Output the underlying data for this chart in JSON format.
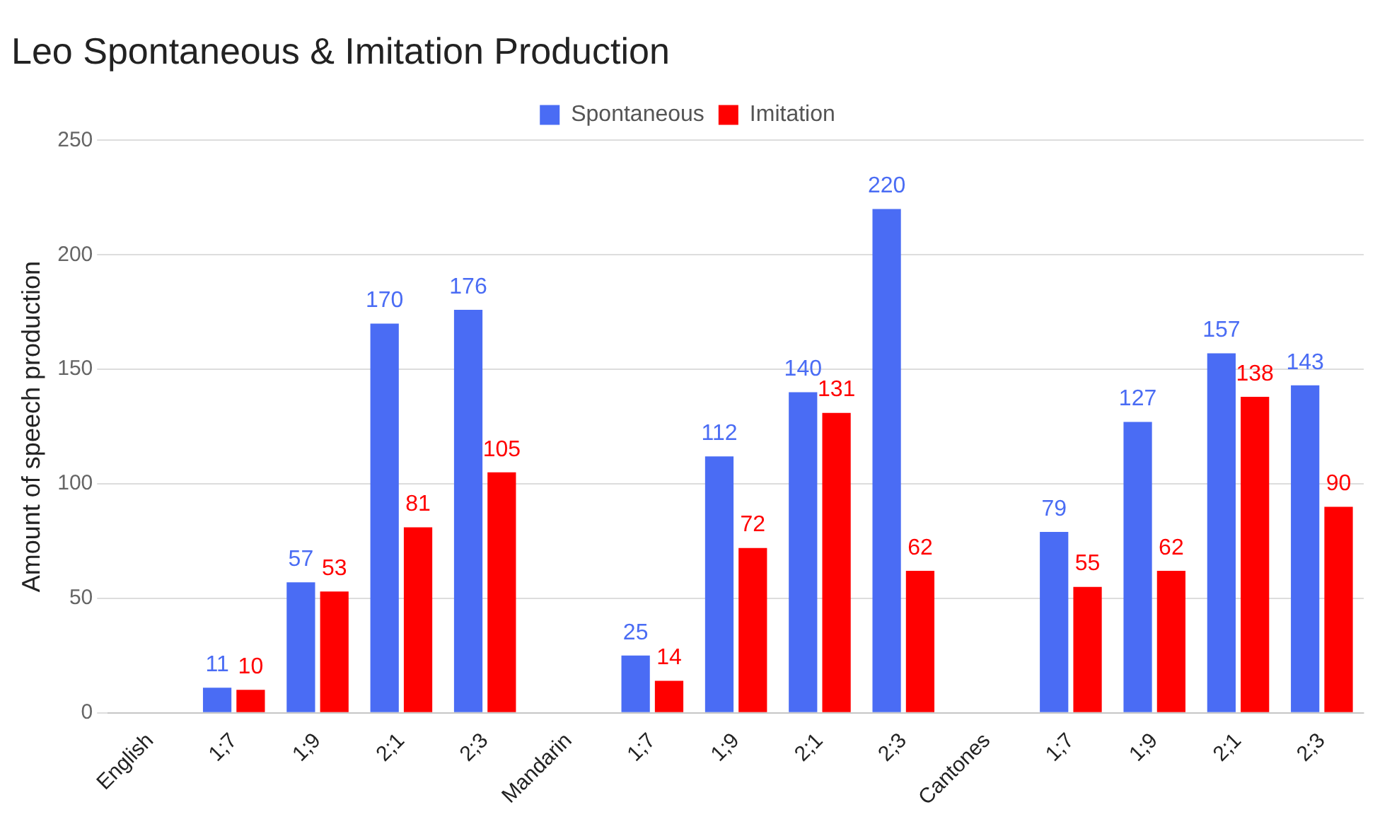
{
  "chart_data": {
    "type": "bar",
    "title": "Leo Spontaneous & Imitation Production",
    "ylabel": "Amount of speech production",
    "categories": [
      "English",
      "1;7",
      "1;9",
      "2;1",
      "2;3",
      "Mandarin",
      "1;7",
      "1;9",
      "2;1",
      "2;3",
      "Cantones",
      "1;7",
      "1;9",
      "2;1",
      "2;3"
    ],
    "series": [
      {
        "name": "Spontaneous",
        "color": "#4a6cf4",
        "values": [
          null,
          11,
          57,
          170,
          176,
          null,
          25,
          112,
          140,
          220,
          null,
          79,
          127,
          157,
          143
        ]
      },
      {
        "name": "Imitation",
        "color": "#ff0000",
        "values": [
          null,
          10,
          53,
          81,
          105,
          null,
          14,
          72,
          131,
          62,
          null,
          55,
          62,
          138,
          90
        ]
      }
    ],
    "ylim": [
      0,
      250
    ],
    "yticks": [
      0,
      50,
      100,
      150,
      200,
      250
    ],
    "grid": "y",
    "legend": "top",
    "data_labels": true
  }
}
